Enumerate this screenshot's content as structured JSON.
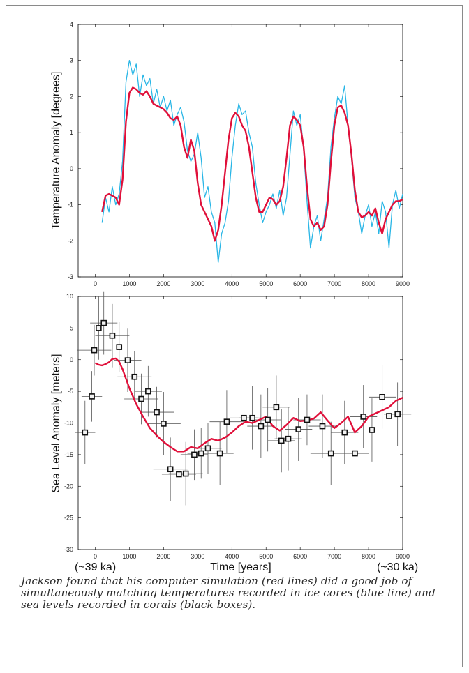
{
  "chart_data": [
    {
      "type": "line",
      "ylabel": "Temperature Anomaly [degrees]",
      "xlim": [
        -500,
        9000
      ],
      "ylim": [
        -3,
        4
      ],
      "x_ticks": [
        0,
        1000,
        2000,
        3000,
        4000,
        5000,
        6000,
        7000,
        8000,
        9000
      ],
      "y_ticks": [
        -3,
        -2,
        -1,
        0,
        1,
        2,
        3,
        4
      ],
      "series": [
        {
          "role": "ice core record",
          "color": "#29b6e6",
          "x": [
            200,
            300,
            400,
            500,
            600,
            700,
            800,
            900,
            1000,
            1100,
            1200,
            1300,
            1400,
            1500,
            1600,
            1700,
            1800,
            1900,
            2000,
            2100,
            2200,
            2300,
            2400,
            2500,
            2600,
            2700,
            2800,
            2900,
            3000,
            3100,
            3200,
            3300,
            3400,
            3500,
            3600,
            3700,
            3800,
            3900,
            4000,
            4100,
            4200,
            4300,
            4400,
            4500,
            4600,
            4700,
            4800,
            4900,
            5000,
            5100,
            5200,
            5300,
            5400,
            5500,
            5600,
            5700,
            5800,
            5900,
            6000,
            6100,
            6200,
            6300,
            6400,
            6500,
            6600,
            6700,
            6800,
            6900,
            7000,
            7100,
            7200,
            7300,
            7400,
            7500,
            7600,
            7700,
            7800,
            7900,
            8000,
            8100,
            8200,
            8300,
            8400,
            8500,
            8600,
            8700,
            8800,
            8900,
            9000
          ],
          "y": [
            -1.5,
            -0.8,
            -1.2,
            -0.5,
            -1.0,
            -0.7,
            0.2,
            2.4,
            3.0,
            2.6,
            2.9,
            2.0,
            2.6,
            2.3,
            2.5,
            1.8,
            2.2,
            1.7,
            2.0,
            1.6,
            1.9,
            1.2,
            1.5,
            1.7,
            1.3,
            0.5,
            0.2,
            0.4,
            1.0,
            0.3,
            -0.8,
            -0.5,
            -1.2,
            -1.5,
            -2.6,
            -1.8,
            -1.5,
            -0.9,
            0.3,
            1.2,
            1.8,
            1.5,
            1.6,
            1.0,
            0.6,
            -0.4,
            -1.0,
            -1.5,
            -1.2,
            -1.0,
            -0.7,
            -1.1,
            -0.6,
            -1.3,
            -0.8,
            0.4,
            1.6,
            1.2,
            1.5,
            0.5,
            -0.9,
            -2.2,
            -1.6,
            -1.3,
            -2.0,
            -1.4,
            -0.8,
            0.6,
            1.4,
            2.0,
            1.8,
            2.3,
            1.2,
            0.3,
            -0.8,
            -1.2,
            -1.8,
            -1.3,
            -1.0,
            -1.6,
            -1.2,
            -1.8,
            -0.9,
            -1.2,
            -2.2,
            -1.0,
            -0.6,
            -1.1,
            -0.7
          ]
        },
        {
          "role": "computer simulation",
          "color": "#e0103a",
          "x": [
            200,
            300,
            400,
            500,
            600,
            700,
            800,
            900,
            1000,
            1100,
            1200,
            1300,
            1400,
            1500,
            1600,
            1700,
            1800,
            1900,
            2000,
            2100,
            2200,
            2300,
            2400,
            2500,
            2600,
            2700,
            2800,
            2900,
            3000,
            3100,
            3200,
            3300,
            3400,
            3500,
            3600,
            3700,
            3800,
            3900,
            4000,
            4100,
            4200,
            4300,
            4400,
            4500,
            4600,
            4700,
            4800,
            4900,
            5000,
            5100,
            5200,
            5300,
            5400,
            5500,
            5600,
            5700,
            5800,
            5900,
            6000,
            6100,
            6200,
            6300,
            6400,
            6500,
            6600,
            6700,
            6800,
            6900,
            7000,
            7100,
            7200,
            7300,
            7400,
            7500,
            7600,
            7700,
            7800,
            7900,
            8000,
            8100,
            8200,
            8300,
            8400,
            8500,
            8600,
            8700,
            8800,
            8900,
            9000
          ],
          "y": [
            -1.2,
            -0.75,
            -0.7,
            -0.75,
            -0.8,
            -1.0,
            -0.3,
            1.3,
            2.1,
            2.25,
            2.2,
            2.1,
            2.05,
            2.15,
            2.0,
            1.8,
            1.75,
            1.7,
            1.65,
            1.55,
            1.4,
            1.35,
            1.45,
            1.2,
            0.6,
            0.3,
            0.8,
            0.5,
            -0.4,
            -1.0,
            -1.2,
            -1.4,
            -1.6,
            -2.0,
            -1.7,
            -1.0,
            -0.1,
            0.8,
            1.4,
            1.55,
            1.45,
            1.2,
            1.05,
            0.6,
            -0.1,
            -0.8,
            -1.2,
            -1.2,
            -1.0,
            -0.8,
            -0.85,
            -1.0,
            -0.9,
            -0.5,
            0.3,
            1.2,
            1.45,
            1.35,
            1.2,
            0.6,
            -0.5,
            -1.4,
            -1.6,
            -1.5,
            -1.7,
            -1.6,
            -1.0,
            0.2,
            1.2,
            1.7,
            1.75,
            1.55,
            1.2,
            0.4,
            -0.6,
            -1.2,
            -1.35,
            -1.3,
            -1.2,
            -1.3,
            -1.1,
            -1.5,
            -1.8,
            -1.4,
            -1.2,
            -1.0,
            -0.9,
            -0.9,
            -0.85
          ]
        }
      ]
    },
    {
      "type": "scatter",
      "xlabel": "Time [years]",
      "ylabel": "Sea Level Anomaly  [meters]",
      "xlim": [
        -500,
        9000
      ],
      "ylim": [
        -30,
        10
      ],
      "x_ticks": [
        0,
        1000,
        2000,
        3000,
        4000,
        5000,
        6000,
        7000,
        8000,
        9000
      ],
      "y_ticks": [
        -30,
        -25,
        -20,
        -15,
        -10,
        -5,
        0,
        5,
        10
      ],
      "x_end_labels": [
        "(~39 ka)",
        "(~30 ka)"
      ],
      "simulation": {
        "color": "#e0103a",
        "x": [
          0,
          100,
          200,
          300,
          400,
          500,
          600,
          700,
          800,
          900,
          1000,
          1200,
          1400,
          1600,
          1800,
          2000,
          2200,
          2400,
          2600,
          2800,
          3000,
          3200,
          3400,
          3600,
          3800,
          4000,
          4200,
          4400,
          4600,
          4800,
          5000,
          5200,
          5400,
          5600,
          5800,
          6000,
          6200,
          6400,
          6600,
          6800,
          7000,
          7200,
          7400,
          7600,
          7800,
          8000,
          8200,
          8400,
          8600,
          8800,
          9000
        ],
        "y": [
          -0.5,
          -0.8,
          -0.9,
          -0.7,
          -0.4,
          0.1,
          0.2,
          -0.3,
          -1.5,
          -3.0,
          -4.5,
          -7.0,
          -9.0,
          -10.8,
          -12.0,
          -13.0,
          -13.8,
          -14.5,
          -14.5,
          -13.8,
          -14.0,
          -13.2,
          -12.5,
          -12.8,
          -12.3,
          -11.5,
          -10.5,
          -9.8,
          -10.0,
          -9.5,
          -9.0,
          -10.5,
          -11.2,
          -10.3,
          -9.2,
          -9.7,
          -9.6,
          -9.3,
          -8.3,
          -9.6,
          -10.8,
          -10.0,
          -9.0,
          -11.5,
          -10.5,
          -9.0,
          -8.5,
          -8.0,
          -7.5,
          -6.5,
          -6.0
        ]
      },
      "points": [
        {
          "x": -300,
          "y": -11.5,
          "xerr": 300,
          "yerr": 5
        },
        {
          "x": -100,
          "y": -5.8,
          "xerr": 300,
          "yerr": 4
        },
        {
          "x": -30,
          "y": 1.5,
          "xerr": 500,
          "yerr": 4
        },
        {
          "x": 100,
          "y": 5.0,
          "xerr": 400,
          "yerr": 5
        },
        {
          "x": 250,
          "y": 5.8,
          "xerr": 400,
          "yerr": 5
        },
        {
          "x": 500,
          "y": 3.8,
          "xerr": 500,
          "yerr": 5
        },
        {
          "x": 700,
          "y": 2.0,
          "xerr": 400,
          "yerr": 4
        },
        {
          "x": 950,
          "y": -0.1,
          "xerr": 400,
          "yerr": 5
        },
        {
          "x": 1150,
          "y": -2.7,
          "xerr": 500,
          "yerr": 4
        },
        {
          "x": 1350,
          "y": -6.2,
          "xerr": 500,
          "yerr": 4
        },
        {
          "x": 1550,
          "y": -5.0,
          "xerr": 400,
          "yerr": 4
        },
        {
          "x": 1800,
          "y": -8.3,
          "xerr": 500,
          "yerr": 4
        },
        {
          "x": 2000,
          "y": -10.1,
          "xerr": 500,
          "yerr": 5
        },
        {
          "x": 2200,
          "y": -17.3,
          "xerr": 500,
          "yerr": 5
        },
        {
          "x": 2450,
          "y": -18.1,
          "xerr": 500,
          "yerr": 5
        },
        {
          "x": 2650,
          "y": -18.0,
          "xerr": 500,
          "yerr": 5
        },
        {
          "x": 2900,
          "y": -15.0,
          "xerr": 400,
          "yerr": 4
        },
        {
          "x": 3100,
          "y": -14.8,
          "xerr": 400,
          "yerr": 4
        },
        {
          "x": 3300,
          "y": -14.0,
          "xerr": 400,
          "yerr": 4
        },
        {
          "x": 3650,
          "y": -14.8,
          "xerr": 400,
          "yerr": 5
        },
        {
          "x": 3850,
          "y": -9.8,
          "xerr": 500,
          "yerr": 5
        },
        {
          "x": 4350,
          "y": -9.2,
          "xerr": 400,
          "yerr": 5
        },
        {
          "x": 4600,
          "y": -9.2,
          "xerr": 400,
          "yerr": 5
        },
        {
          "x": 4850,
          "y": -10.5,
          "xerr": 400,
          "yerr": 5
        },
        {
          "x": 5050,
          "y": -9.5,
          "xerr": 400,
          "yerr": 5
        },
        {
          "x": 5300,
          "y": -7.5,
          "xerr": 400,
          "yerr": 5
        },
        {
          "x": 5450,
          "y": -12.8,
          "xerr": 400,
          "yerr": 5
        },
        {
          "x": 5650,
          "y": -12.5,
          "xerr": 400,
          "yerr": 5
        },
        {
          "x": 5950,
          "y": -11.0,
          "xerr": 400,
          "yerr": 5
        },
        {
          "x": 6200,
          "y": -9.5,
          "xerr": 400,
          "yerr": 4
        },
        {
          "x": 6650,
          "y": -10.5,
          "xerr": 400,
          "yerr": 5
        },
        {
          "x": 6900,
          "y": -14.8,
          "xerr": 600,
          "yerr": 5
        },
        {
          "x": 7300,
          "y": -11.5,
          "xerr": 400,
          "yerr": 5
        },
        {
          "x": 7600,
          "y": -14.8,
          "xerr": 400,
          "yerr": 5
        },
        {
          "x": 7850,
          "y": -9.0,
          "xerr": 400,
          "yerr": 5
        },
        {
          "x": 8100,
          "y": -11.1,
          "xerr": 500,
          "yerr": 5
        },
        {
          "x": 8400,
          "y": -5.9,
          "xerr": 400,
          "yerr": 5
        },
        {
          "x": 8600,
          "y": -8.9,
          "xerr": 400,
          "yerr": 5
        },
        {
          "x": 8850,
          "y": -8.6,
          "xerr": 400,
          "yerr": 5
        }
      ]
    }
  ],
  "caption": "Jackson found that his computer simulation (red lines) did a good job of simultaneously matching temperatures recorded in ice cores (blue line) and sea levels recorded in corals (black boxes)."
}
